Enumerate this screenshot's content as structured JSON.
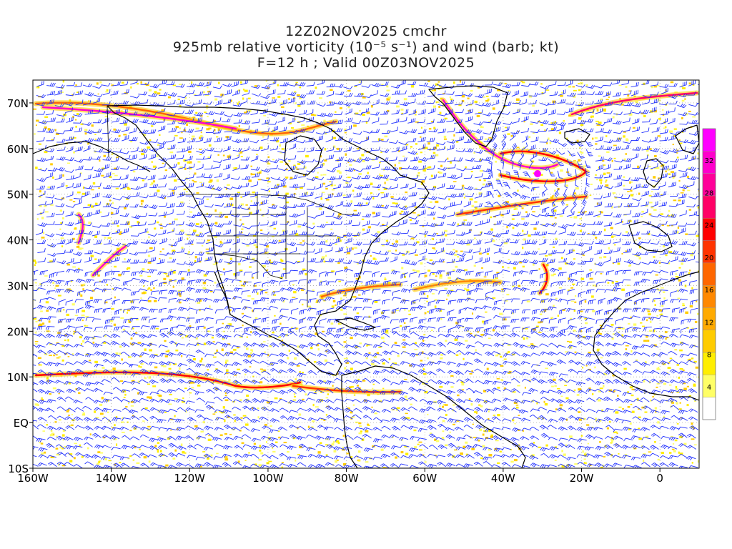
{
  "title": {
    "line1": "12Z02NOV2025 cmchr",
    "line2": "925mb relative vorticity (10⁻⁵ s⁻¹) and wind (barb; kt)",
    "line3": "F=12 h ; Valid 00Z03NOV2025"
  },
  "map": {
    "lon_range": [
      -160,
      10
    ],
    "lat_range": [
      -10,
      75
    ],
    "lat_ticks": [
      {
        "value": 70,
        "label": "70N"
      },
      {
        "value": 60,
        "label": "60N"
      },
      {
        "value": 50,
        "label": "50N"
      },
      {
        "value": 40,
        "label": "40N"
      },
      {
        "value": 30,
        "label": "30N"
      },
      {
        "value": 20,
        "label": "20N"
      },
      {
        "value": 10,
        "label": "10N"
      },
      {
        "value": 0,
        "label": "EQ"
      },
      {
        "value": -10,
        "label": "10S"
      }
    ],
    "lon_ticks": [
      {
        "value": -160,
        "label": "160W"
      },
      {
        "value": -140,
        "label": "140W"
      },
      {
        "value": -120,
        "label": "120W"
      },
      {
        "value": -100,
        "label": "100W"
      },
      {
        "value": -80,
        "label": "80W"
      },
      {
        "value": -60,
        "label": "60W"
      },
      {
        "value": -40,
        "label": "40W"
      },
      {
        "value": -20,
        "label": "20W"
      },
      {
        "value": 0,
        "label": "0"
      }
    ],
    "wind_barb_color": "#1f2fff",
    "coastline_color": "#000000"
  },
  "colorbar": {
    "levels": [
      "4",
      "8",
      "12",
      "16",
      "20",
      "24",
      "28",
      "32"
    ],
    "colors": [
      "#ffffff",
      "#ffff66",
      "#ffee00",
      "#ffcc00",
      "#ffaa00",
      "#ff8800",
      "#ff6600",
      "#ff3300",
      "#ff0000",
      "#ff0066",
      "#ff0099",
      "#ff00cc",
      "#ff00ff"
    ]
  }
}
